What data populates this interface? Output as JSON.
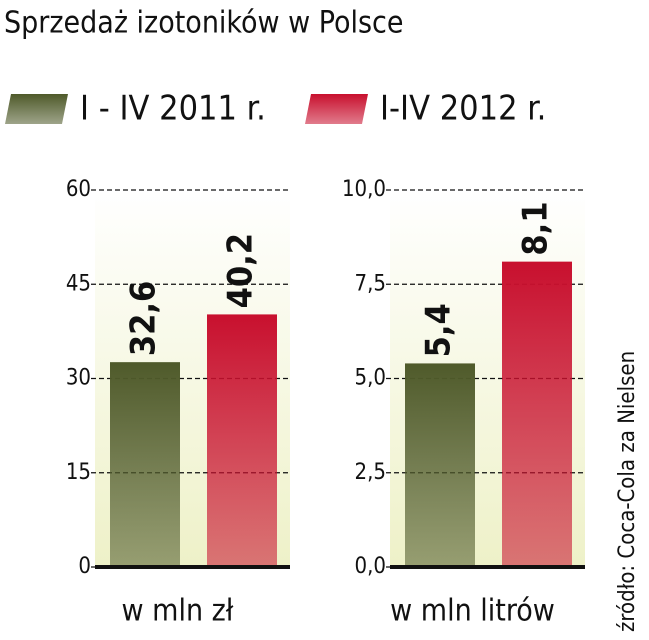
{
  "title": "Sprzedaż izotoników w Polsce",
  "source": "źródło: Coca-Cola za Nielsen",
  "legend": [
    {
      "name": "I - IV 2011 r.",
      "color": "#4f5a2a"
    },
    {
      "name": "I-IV 2012 r.",
      "color": "#c8102e"
    }
  ],
  "chart_data": [
    {
      "type": "bar",
      "x_label": "w mln zł",
      "values": [
        32.6,
        40.2
      ],
      "value_labels": [
        "32,6",
        "40,2"
      ],
      "ylim": [
        0,
        60
      ],
      "yticks": [
        0,
        15,
        30,
        45,
        60
      ],
      "grid": true
    },
    {
      "type": "bar",
      "x_label": "w mln litrów",
      "values": [
        5.4,
        8.1
      ],
      "value_labels": [
        "5,4",
        "8,1"
      ],
      "ylim": [
        0,
        10
      ],
      "yticks": [
        {
          "value": 0,
          "label": "0,0"
        },
        {
          "value": 2.5,
          "label": "2,5"
        },
        {
          "value": 5,
          "label": "5,0"
        },
        {
          "value": 7.5,
          "label": "7,5"
        },
        {
          "value": 10,
          "label": "10,0"
        }
      ],
      "grid": true
    }
  ]
}
